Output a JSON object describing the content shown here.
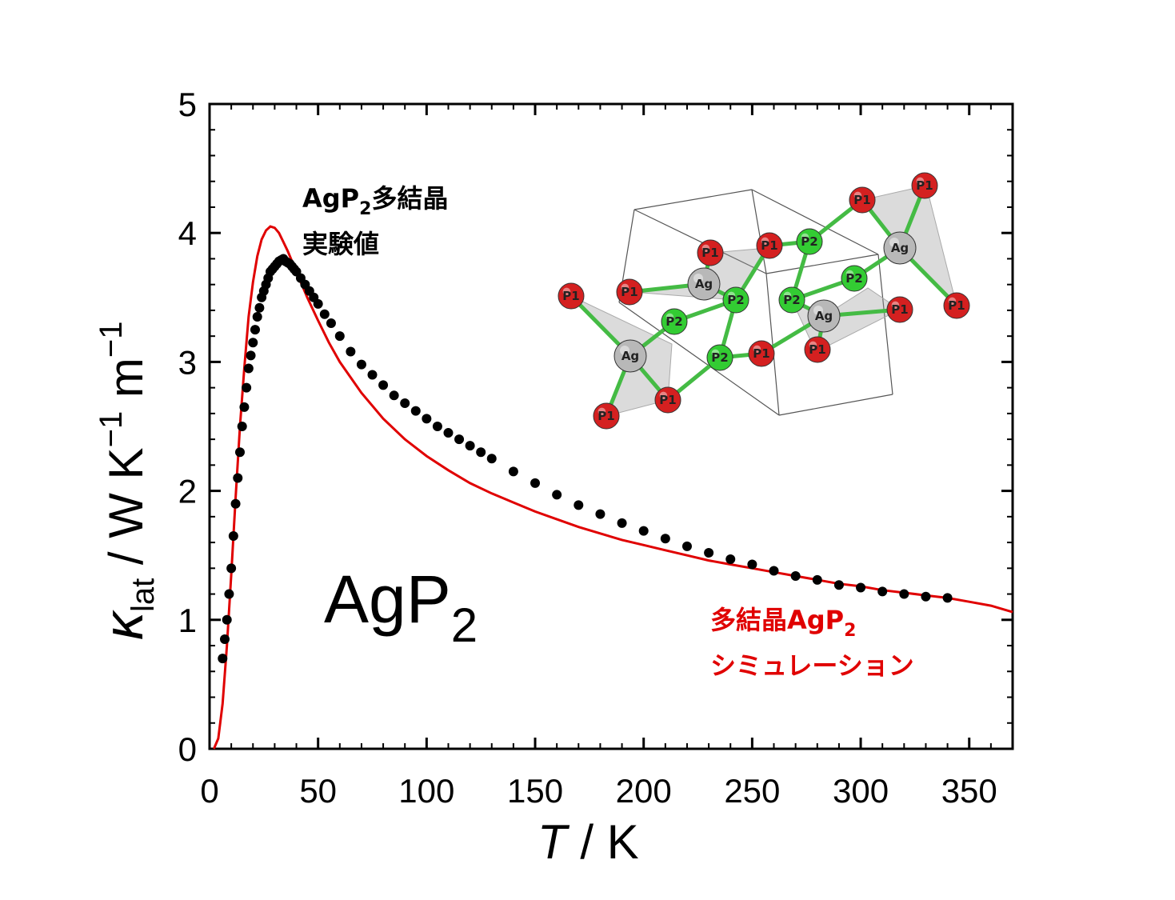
{
  "chart_data": {
    "type": "scatter",
    "xlabel": "T / K",
    "ylabel": "κlat / W K−1 m−1",
    "xlim": [
      0,
      370
    ],
    "ylim": [
      0,
      5
    ],
    "x_ticks": [
      "0",
      "50",
      "100",
      "150",
      "200",
      "250",
      "300",
      "350"
    ],
    "y_ticks": [
      "0",
      "1",
      "2",
      "3",
      "4",
      "5"
    ],
    "grid": false,
    "legend": "none",
    "series": [
      {
        "name": "AgP2多結晶 実験値",
        "kind": "scatter",
        "color": "#000000",
        "x": [
          6,
          7,
          8,
          9,
          10,
          11,
          12,
          13,
          14,
          15,
          16,
          17,
          18,
          19,
          20,
          21,
          22,
          23,
          24,
          25,
          26,
          27,
          28,
          29,
          30,
          31,
          32,
          33,
          34,
          35,
          36,
          37,
          38,
          39,
          40,
          42,
          44,
          46,
          48,
          50,
          53,
          56,
          60,
          65,
          70,
          75,
          80,
          85,
          90,
          95,
          100,
          105,
          110,
          115,
          120,
          125,
          130,
          140,
          150,
          160,
          170,
          180,
          190,
          200,
          210,
          220,
          230,
          240,
          250,
          260,
          270,
          280,
          290,
          300,
          310,
          320,
          330,
          340
        ],
        "y": [
          0.7,
          0.85,
          1.0,
          1.2,
          1.4,
          1.65,
          1.9,
          2.1,
          2.3,
          2.5,
          2.65,
          2.8,
          2.95,
          3.05,
          3.15,
          3.25,
          3.35,
          3.42,
          3.5,
          3.55,
          3.6,
          3.65,
          3.7,
          3.72,
          3.74,
          3.76,
          3.78,
          3.79,
          3.8,
          3.78,
          3.77,
          3.76,
          3.74,
          3.72,
          3.7,
          3.65,
          3.6,
          3.55,
          3.5,
          3.45,
          3.37,
          3.3,
          3.2,
          3.08,
          2.98,
          2.9,
          2.82,
          2.74,
          2.68,
          2.62,
          2.56,
          2.5,
          2.45,
          2.4,
          2.35,
          2.3,
          2.25,
          2.15,
          2.06,
          1.97,
          1.89,
          1.82,
          1.75,
          1.69,
          1.63,
          1.57,
          1.52,
          1.47,
          1.43,
          1.38,
          1.34,
          1.31,
          1.27,
          1.25,
          1.22,
          1.2,
          1.18,
          1.17
        ]
      },
      {
        "name": "多結晶AgP2 シミュレーション",
        "kind": "line",
        "color": "#e00000",
        "x": [
          2,
          4,
          6,
          8,
          10,
          12,
          14,
          16,
          18,
          20,
          22,
          24,
          26,
          28,
          30,
          32,
          34,
          36,
          38,
          40,
          45,
          50,
          55,
          60,
          70,
          80,
          90,
          100,
          110,
          120,
          130,
          140,
          150,
          160,
          170,
          180,
          190,
          200,
          210,
          220,
          230,
          240,
          250,
          260,
          270,
          280,
          290,
          300,
          310,
          320,
          330,
          340,
          350,
          360,
          370
        ],
        "y": [
          0.0,
          0.08,
          0.35,
          0.8,
          1.35,
          1.95,
          2.5,
          2.95,
          3.35,
          3.62,
          3.82,
          3.95,
          4.02,
          4.05,
          4.04,
          4.0,
          3.93,
          3.86,
          3.78,
          3.7,
          3.5,
          3.32,
          3.15,
          3.0,
          2.76,
          2.56,
          2.4,
          2.27,
          2.16,
          2.06,
          1.98,
          1.91,
          1.84,
          1.78,
          1.72,
          1.67,
          1.62,
          1.58,
          1.54,
          1.5,
          1.46,
          1.43,
          1.4,
          1.37,
          1.34,
          1.31,
          1.28,
          1.26,
          1.23,
          1.21,
          1.19,
          1.17,
          1.14,
          1.11,
          1.06
        ]
      }
    ]
  },
  "labels": {
    "experiment_line1_main": "AgP",
    "experiment_line1_sub": "2",
    "experiment_line1_rest": "多結晶",
    "experiment_line2": "実験値",
    "sim_line1_main": "多結晶AgP",
    "sim_line1_sub": "2",
    "sim_line2": "シミュレーション",
    "compound_main": "AgP",
    "compound_sub": "2",
    "x_axis_italic": "T",
    "x_axis_unit": " / K",
    "y_axis_kappa": "κ",
    "y_axis_sub": "lat",
    "y_axis_unit": " / W K",
    "y_axis_exp1": "−1",
    "y_axis_m": " m",
    "y_axis_exp2": "−1"
  },
  "inset": {
    "atoms": [
      "P1",
      "P1",
      "P1",
      "P1",
      "P1",
      "P1",
      "P1",
      "P1",
      "P1",
      "P1",
      "P1",
      "P1",
      "P2",
      "P2",
      "P2",
      "P2",
      "P2",
      "P2",
      "Ag",
      "Ag",
      "Ag",
      "Ag"
    ]
  },
  "colors": {
    "experiment": "#000000",
    "simulation": "#e00000",
    "atom_p1": "#d42020",
    "atom_p2": "#33cc33",
    "atom_ag": "#b8b8b8"
  }
}
